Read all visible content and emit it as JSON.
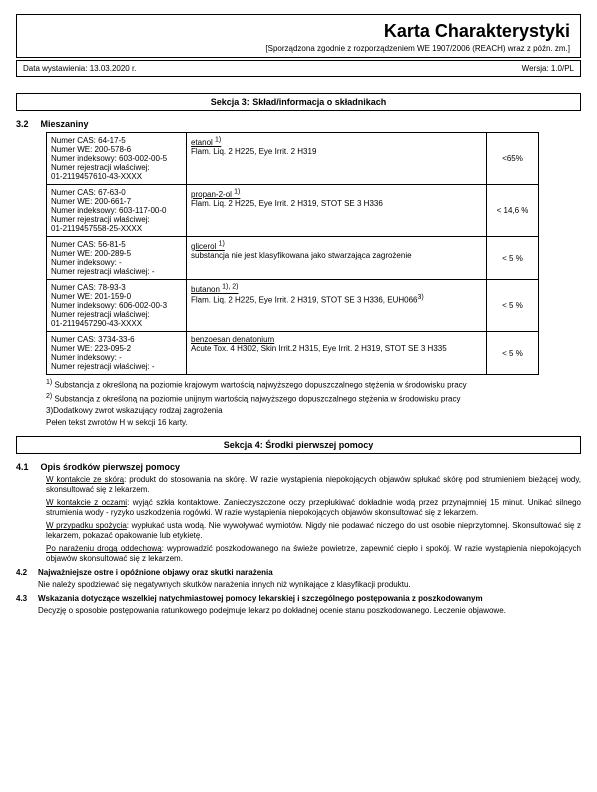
{
  "header": {
    "title": "Karta Charakterystyki",
    "subtitle": "[Sporządzona zgodnie z rozporządzeniem WE 1907/2006 (REACH) wraz z późn. zm.]",
    "date_left": "Data wystawienia: 13.03.2020 r.",
    "version_right": "Wersja: 1.0/PL"
  },
  "section3": {
    "title": "Sekcja 3: Skład/informacja o składnikach",
    "sub_num": "3.2",
    "sub_title": "Mieszaniny",
    "rows": [
      {
        "lines": [
          "Numer CAS: 64-17-5",
          "Numer WE: 200-578-6",
          "Numer indeksowy: 603-002-00-5",
          "Numer rejestracji właściwej:",
          "01-2119457610-43-XXXX"
        ],
        "name": "etanol <sup>1)</sup>",
        "hazard": "Flam. Liq. 2 H225, Eye Irrit. 2 H319",
        "conc": "<65%"
      },
      {
        "lines": [
          "Numer CAS: 67-63-0",
          "Numer WE: 200-661-7",
          "Numer indeksowy: 603-117-00-0",
          "Numer rejestracji właściwej:",
          "01-2119457558-25-XXXX"
        ],
        "name": "propan-2-ol <sup>1)</sup>",
        "hazard": "Flam. Liq. 2 H225, Eye Irrit. 2 H319, STOT SE 3 H336",
        "conc": "< 14,6 %"
      },
      {
        "lines": [
          "Numer CAS: 56-81-5",
          "Numer WE: 200-289-5",
          "Numer indeksowy: -",
          "Numer rejestracji właściwej: -"
        ],
        "name": "glicerol <sup>1)</sup>",
        "hazard": "substancja nie jest klasyfikowana jako stwarzająca zagrożenie",
        "conc": "< 5 %"
      },
      {
        "lines": [
          "Numer CAS: 78-93-3",
          "Numer WE: 201-159-0",
          "Numer indeksowy: 606-002-00-3",
          "Numer rejestracji właściwej:",
          "01-2119457290-43-XXXX"
        ],
        "name": "butanon <sup>1), 2)</sup>",
        "hazard": "Flam. Liq. 2 H225, Eye Irrit. 2 H319, STOT SE 3 H336, EUH066<sup>3)</sup>",
        "conc": "< 5 %"
      },
      {
        "lines": [
          "Numer CAS: 3734-33-6",
          "Numer WE: 223-095-2",
          "Numer indeksowy: -",
          "Numer rejestracji właściwej: -"
        ],
        "name": "benzoesan denatonium",
        "hazard": "Acute Tox. 4 H302, Skin Irrit.2 H315, Eye Irrit. 2 H319, STOT SE 3 H335",
        "conc": "< 5 %"
      }
    ],
    "footnotes": [
      "<sup>1)</sup> Substancja z określoną na poziomie krajowym wartością najwyższego dopuszczalnego stężenia w środowisku pracy",
      "<sup>2)</sup> Substancja z określoną na poziomie unijnym wartością najwyższego dopuszczalnego stężenia w środowisku pracy",
      "3)Dodatkowy zwrot wskazujący rodzaj zagrożenia",
      "Pełen tekst zwrotów H w sekcji 16 karty."
    ]
  },
  "section4": {
    "title": "Sekcja 4: Środki pierwszej pomocy",
    "sub41_num": "4.1",
    "sub41_title": "Opis środków pierwszej pomocy",
    "para41": [
      "<span class=\"u\">W kontakcie ze skórą</span>: produkt do stosowania na skórę. W razie wystąpienia niepokojących objawów spłukać skórę pod strumieniem bieżącej wody, skonsultować się z lekarzem.",
      "<span class=\"u\">W kontakcie z oczami</span>: wyjąć szkła kontaktowe. Zanieczyszczone oczy przepłukiwać dokładnie wodą przez przynajmniej 15 minut. Unikać silnego strumienia wody - ryzyko uszkodzenia rogówki. W razie wystąpienia niepokojących objawów skonsultować się z lekarzem.",
      "<span class=\"u\">W przypadku spożycia</span>: wypłukać usta wodą. Nie wywoływać wymiotów. Nigdy nie podawać niczego do ust osobie nieprzytomnej. Skonsultować się z lekarzem, pokazać opakowanie lub etykietę.",
      "<span class=\"u\">Po narażeniu drogą oddechową</span>: wyprowadzić poszkodowanego na świeże powietrze, zapewnić ciepło i spokój. W razie wystąpienia niepokojących objawów skonsultować się z lekarzem."
    ],
    "sub42_num": "4.2",
    "sub42_title": "Najważniejsze ostre i opóźnione objawy oraz skutki narażenia",
    "para42": "Nie należy spodziewać się negatywnych skutków narażenia innych niż wynikające z klasyfikacji produktu.",
    "sub43_num": "4.3",
    "sub43_title": "Wskazania dotyczące wszelkiej natychmiastowej pomocy lekarskiej i szczególnego postępowania z poszkodowanym",
    "para43": "Decyzję o sposobie postępowania ratunkowego podejmuje lekarz po dokładnej ocenie stanu poszkodowanego. Leczenie objawowe."
  }
}
